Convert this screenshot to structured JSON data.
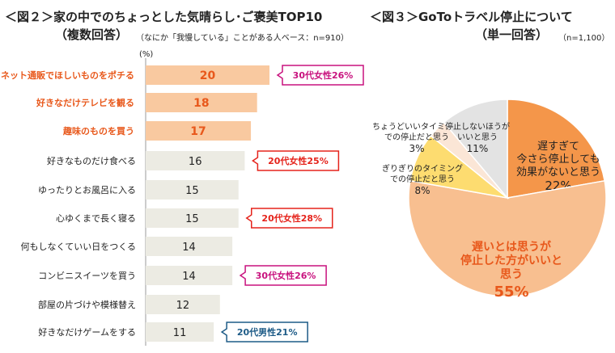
{
  "chart_data": [
    {
      "type": "bar",
      "title": "＜図２＞家の中でのちょっとした気晴らし･ご褒美TOP10",
      "subtitle": "（複数回答）",
      "note": "（なにか「我慢している」ことがある人ベース：n=910）",
      "unit": "(%)",
      "categories": [
        "ネット通販でほしいものをポチる",
        "好きなだけテレビを観る",
        "趣味のものを買う",
        "好きなものだけ食べる",
        "ゆったりとお風呂に入る",
        "心ゆくまで長く寝る",
        "何もしなくていい日をつくる",
        "コンビニスイーツを買う",
        "部屋の片づけや模様替え",
        "好きなだけゲームをする"
      ],
      "values": [
        20,
        18,
        17,
        16,
        15,
        15,
        14,
        14,
        12,
        11
      ],
      "highlight_top": 3,
      "colors": {
        "highlight_bar": "#f9c9a0",
        "bar": "#ecebe3",
        "highlight_text": "#e8581b"
      },
      "annotations": [
        {
          "index": 0,
          "text": "30代女性26%",
          "color": "#c8127e"
        },
        {
          "index": 3,
          "text": "20代女性25%",
          "color": "#e5231b"
        },
        {
          "index": 5,
          "text": "20代女性28%",
          "color": "#e5231b"
        },
        {
          "index": 7,
          "text": "30代女性26%",
          "color": "#c8127e"
        },
        {
          "index": 9,
          "text": "20代男性21%",
          "color": "#1d5b87"
        }
      ]
    },
    {
      "type": "pie",
      "title": "＜図３＞GoToトラベル停止について",
      "subtitle": "（単一回答）",
      "note": "（n=1,100）",
      "slices": [
        {
          "label": "遅すぎて今さら停止しても効果がないと思う",
          "value": 22,
          "color": "#f4964a"
        },
        {
          "label": "遅いとは思うが停止した方がいいと思う",
          "value": 55,
          "color": "#f8bf90"
        },
        {
          "label": "ぎりぎりのタイミングでの停止だと思う",
          "value": 8,
          "color": "#fddc70"
        },
        {
          "label": "ちょうどいいタイミングでの停止だと思う",
          "value": 3,
          "color": "#fbe6d6"
        },
        {
          "label": "停止しないほうがいいと思う",
          "value": 11,
          "color": "#e3e3e3"
        }
      ]
    }
  ]
}
